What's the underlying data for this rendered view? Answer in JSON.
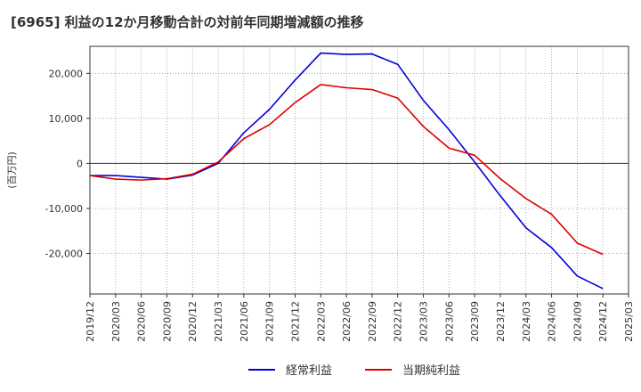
{
  "title": "[6965]  利益の12か月移動合計の対前年同期増減額の推移",
  "chart_data": {
    "type": "line",
    "title": "[6965]  利益の12か月移動合計の対前年同期増減額の推移",
    "ylabel": "(百万円)",
    "xlabel": "",
    "ylim": [
      -29000,
      26000
    ],
    "yticks": [
      20000,
      10000,
      0,
      -10000,
      -20000
    ],
    "ytick_labels": [
      "20,000",
      "10,000",
      "0",
      "-10,000",
      "-20,000"
    ],
    "categories": [
      "2019/12",
      "2020/03",
      "2020/06",
      "2020/09",
      "2020/12",
      "2021/03",
      "2021/06",
      "2021/09",
      "2021/12",
      "2022/03",
      "2022/06",
      "2022/09",
      "2022/12",
      "2023/03",
      "2023/06",
      "2023/09",
      "2023/12",
      "2024/03",
      "2024/06",
      "2024/09",
      "2024/12",
      "2025/03"
    ],
    "grid": true,
    "legend_position": "bottom",
    "series": [
      {
        "name": "経常利益",
        "color": "#0000dd",
        "values": [
          -2700,
          -2700,
          -3100,
          -3500,
          -2600,
          0,
          6800,
          12000,
          18500,
          24500,
          24200,
          24300,
          22000,
          14000,
          7500,
          300,
          -7200,
          -14300,
          -18700,
          -25000,
          -27800,
          null
        ]
      },
      {
        "name": "当期純利益",
        "color": "#dd0000",
        "values": [
          -2700,
          -3500,
          -3700,
          -3400,
          -2400,
          300,
          5500,
          8600,
          13500,
          17500,
          16800,
          16400,
          14500,
          8200,
          3400,
          1800,
          -3400,
          -7800,
          -11300,
          -17700,
          -20200,
          null
        ]
      }
    ]
  }
}
